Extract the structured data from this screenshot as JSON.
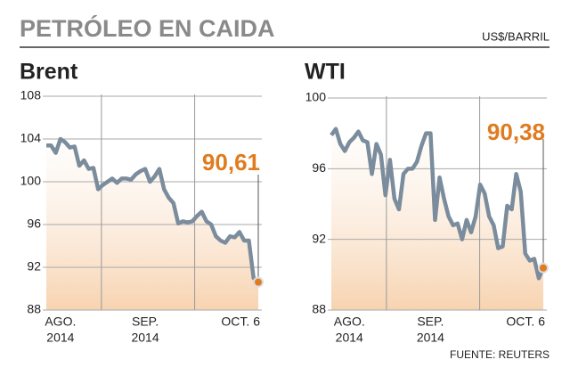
{
  "header": {
    "title": "PETRÓLEO EN CAIDA",
    "unit": "US$/BARRIL"
  },
  "source": "FUENTE: REUTERS",
  "chart_data": [
    {
      "type": "line",
      "title": "Brent",
      "color": "#7b8c9d",
      "label_color": "#e07b1f",
      "grid": true,
      "x_year": "2014",
      "categories": [
        null,
        null,
        null,
        "AGO.",
        null,
        null,
        null,
        null,
        null,
        null,
        null,
        null,
        null,
        null,
        null,
        null,
        null,
        null,
        null,
        null,
        null,
        "SEP.",
        null,
        null,
        null,
        null,
        null,
        null,
        null,
        null,
        null,
        null,
        null,
        null,
        null,
        null,
        null,
        null,
        null,
        null,
        null,
        null,
        null,
        null,
        null,
        "OCT. 6"
      ],
      "values": [
        103.4,
        103.4,
        102.7,
        104,
        103.7,
        103.2,
        103.3,
        101.5,
        102,
        101.2,
        101.3,
        99.3,
        99.7,
        100,
        100.3,
        99.9,
        100.3,
        100.3,
        100.2,
        100.7,
        101,
        101.2,
        100,
        100.5,
        101.2,
        99.3,
        98.5,
        98,
        96.1,
        96.3,
        96.2,
        96.3,
        96.8,
        97.2,
        96.3,
        96,
        94.9,
        94.5,
        94.3,
        94.9,
        94.8,
        95.3,
        94.5,
        94.5,
        91,
        90.61
      ],
      "value_labels": [
        null,
        null,
        null,
        null,
        null,
        null,
        null,
        null,
        null,
        null,
        null,
        null,
        null,
        null,
        null,
        null,
        null,
        null,
        null,
        null,
        null,
        null,
        null,
        null,
        null,
        null,
        null,
        null,
        null,
        null,
        null,
        null,
        null,
        null,
        null,
        null,
        null,
        null,
        null,
        null,
        null,
        null,
        null,
        null,
        null,
        "90,61"
      ],
      "ylim": [
        88,
        108
      ],
      "yticks": [
        88,
        92,
        96,
        100,
        104,
        108
      ]
    },
    {
      "type": "line",
      "title": "WTI",
      "color": "#7b8c9d",
      "label_color": "#e07b1f",
      "grid": true,
      "x_year": "2014",
      "categories": [
        null,
        null,
        null,
        null,
        "AGO.",
        null,
        null,
        null,
        null,
        null,
        null,
        null,
        null,
        null,
        null,
        null,
        null,
        null,
        null,
        null,
        null,
        null,
        "SEP.",
        null,
        null,
        null,
        null,
        null,
        null,
        null,
        null,
        null,
        null,
        null,
        null,
        null,
        null,
        null,
        null,
        null,
        null,
        null,
        null,
        null,
        null,
        null,
        null,
        "OCT. 6"
      ],
      "values": [
        97.9,
        98.25,
        97.4,
        97,
        97.5,
        97.75,
        98.1,
        97.6,
        97.5,
        95.7,
        97.4,
        96.8,
        94.5,
        96.5,
        94.3,
        93.7,
        95.7,
        96,
        96,
        96.4,
        97.3,
        98,
        98,
        93.1,
        95.5,
        94.3,
        93.3,
        92.8,
        92.9,
        92,
        93.1,
        92.4,
        93.3,
        95.1,
        94.6,
        93.3,
        92.8,
        91.5,
        91.6,
        93.9,
        93.7,
        95.7,
        94.7,
        91.2,
        90.8,
        90.9,
        89.8,
        90.38
      ],
      "value_labels": [
        null,
        null,
        null,
        null,
        null,
        null,
        null,
        null,
        null,
        null,
        null,
        null,
        null,
        null,
        null,
        null,
        null,
        null,
        null,
        null,
        null,
        null,
        null,
        null,
        null,
        null,
        null,
        null,
        null,
        null,
        null,
        null,
        null,
        null,
        null,
        null,
        null,
        null,
        null,
        null,
        null,
        null,
        null,
        null,
        null,
        null,
        null,
        "90,38"
      ],
      "ylim": [
        88,
        100
      ],
      "yticks": [
        88,
        92,
        96,
        100
      ]
    }
  ]
}
